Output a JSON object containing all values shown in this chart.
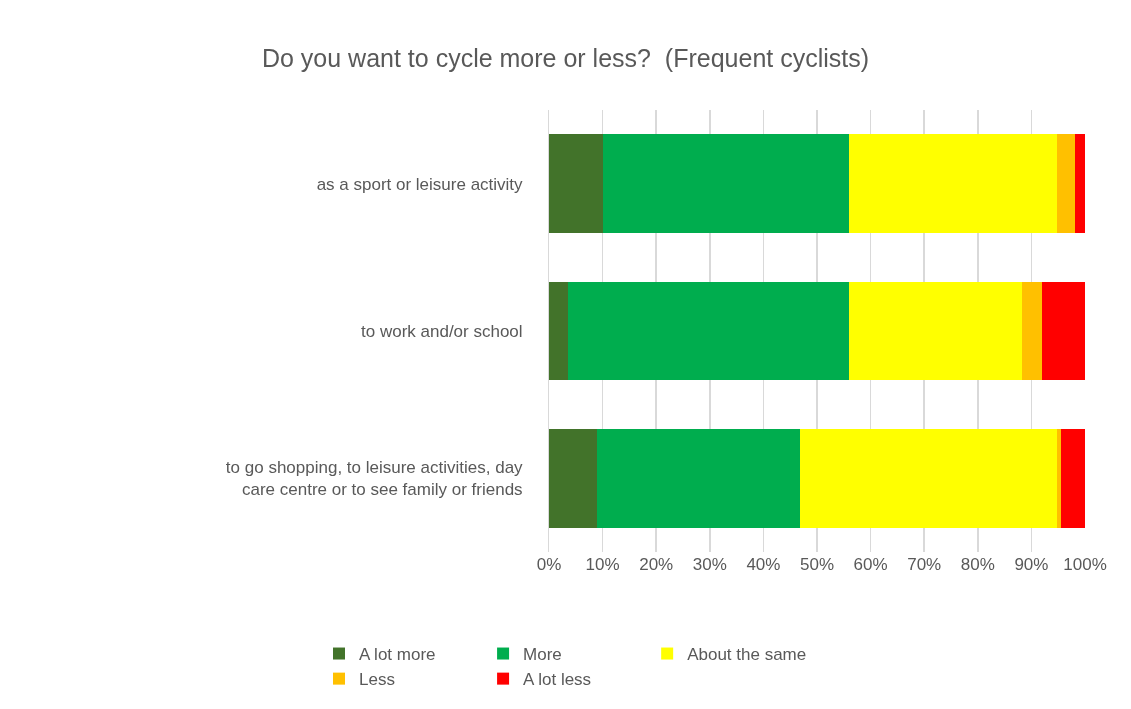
{
  "chart_data": {
    "type": "bar",
    "orientation": "horizontal",
    "stacked": true,
    "title": "Do you want to cycle more or less?  (Frequent cyclists)",
    "categories": [
      "as a sport or leisure activity",
      "to work and/or school",
      "to go shopping, to leisure activities, day care centre or to see family or friends"
    ],
    "series": [
      {
        "name": "A lot more",
        "color": "#42732a",
        "values": [
          10.0,
          3.5,
          9.0
        ]
      },
      {
        "name": "More",
        "color": "#00ad4e",
        "values": [
          45.9,
          52.4,
          37.9
        ]
      },
      {
        "name": "About the same",
        "color": "#ffff00",
        "values": [
          38.8,
          32.4,
          47.8
        ]
      },
      {
        "name": "Less",
        "color": "#ffc000",
        "values": [
          3.5,
          3.6,
          0.9
        ]
      },
      {
        "name": "A lot less",
        "color": "#ff0000",
        "values": [
          1.8,
          8.1,
          4.4
        ]
      }
    ],
    "xlim": [
      0,
      100
    ],
    "xticks": [
      {
        "value": 0,
        "label": "0%"
      },
      {
        "value": 10,
        "label": "10%"
      },
      {
        "value": 20,
        "label": "20%"
      },
      {
        "value": 30,
        "label": "30%"
      },
      {
        "value": 40,
        "label": "40%"
      },
      {
        "value": 50,
        "label": "50%"
      },
      {
        "value": 60,
        "label": "60%"
      },
      {
        "value": 70,
        "label": "70%"
      },
      {
        "value": 80,
        "label": "80%"
      },
      {
        "value": 90,
        "label": "90%"
      },
      {
        "value": 100,
        "label": "100%"
      }
    ],
    "grid": "x",
    "legend": "bottom"
  }
}
